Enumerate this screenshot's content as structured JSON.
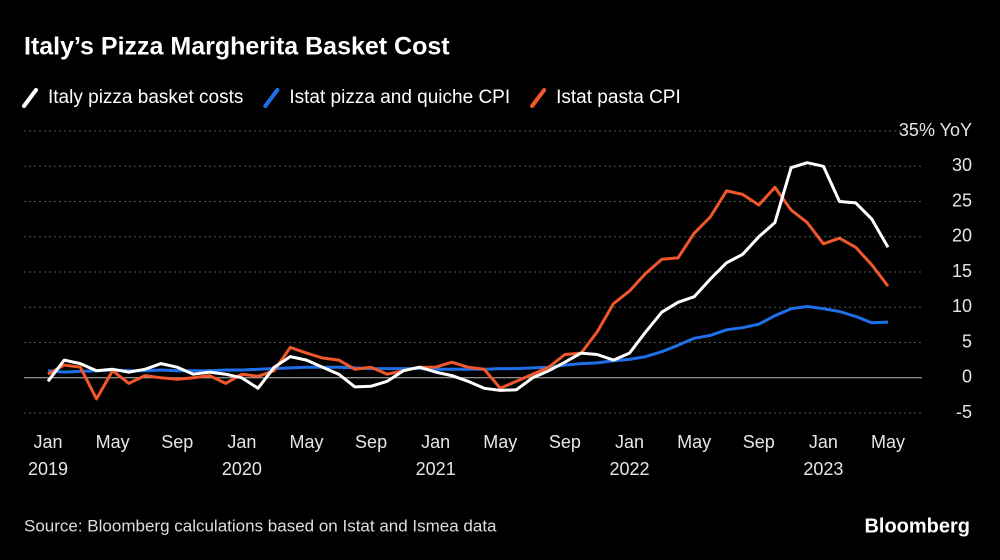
{
  "chart_data": {
    "type": "line",
    "title": "Italy’s Pizza Margherita Basket Cost",
    "source": "Source: Bloomberg calculations based on Istat and Ismea data",
    "brand": "Bloomberg",
    "categories": [
      "Jan",
      null,
      null,
      null,
      "May",
      null,
      null,
      null,
      "Sep",
      null,
      null,
      null,
      "Jan",
      null,
      null,
      null,
      "May",
      null,
      null,
      null,
      "Sep",
      null,
      null,
      null,
      "Jan",
      null,
      null,
      null,
      "May",
      null,
      null,
      null,
      "Sep",
      null,
      null,
      null,
      "Jan",
      null,
      null,
      null,
      "May",
      null,
      null,
      null,
      "Sep",
      null,
      null,
      null,
      "Jan",
      null,
      null,
      null,
      "May"
    ],
    "years": [
      "2019",
      "2020",
      "2021",
      "2022",
      "2023"
    ],
    "series": [
      {
        "name": "Italy pizza basket costs",
        "color": "#ffffff",
        "values": [
          -0.5,
          2.5,
          2,
          1,
          1.2,
          0.8,
          1.2,
          2,
          1.5,
          0.5,
          0.8,
          0.5,
          0,
          -1.5,
          1.5,
          3,
          2.5,
          1.5,
          0.5,
          -1.3,
          -1.2,
          -0.5,
          1,
          1.5,
          0.8,
          0.3,
          -0.5,
          -1.5,
          -1.8,
          -1.7,
          0,
          1,
          2.2,
          3.5,
          3.3,
          2.5,
          3.5,
          6.5,
          9.3,
          10.7,
          11.5,
          14,
          16.3,
          17.5,
          20,
          22,
          29.8,
          30.5,
          30,
          25,
          24.8,
          22.5,
          18.5
        ]
      },
      {
        "name": "Istat pizza and quiche CPI",
        "color": "#1f6fe8",
        "values": [
          1,
          0.8,
          0.9,
          1,
          1.1,
          1,
          1,
          1.1,
          1,
          1,
          1,
          1.1,
          1.1,
          1.2,
          1.3,
          1.4,
          1.5,
          1.5,
          1.5,
          1.4,
          1.3,
          1.3,
          1.3,
          1.3,
          1.2,
          1.2,
          1.2,
          1.2,
          1.3,
          1.3,
          1.4,
          1.5,
          1.8,
          2,
          2.1,
          2.4,
          2.6,
          3,
          3.7,
          4.6,
          5.6,
          6,
          6.8,
          7.1,
          7.6,
          8.8,
          9.8,
          10.1,
          9.8,
          9.4,
          8.7,
          7.8,
          7.9
        ]
      },
      {
        "name": "Istat pasta CPI",
        "color": "#f0572b",
        "values": [
          0.5,
          1.8,
          1.5,
          -3,
          1,
          -0.8,
          0.3,
          0,
          -0.2,
          0,
          0.3,
          -0.8,
          0.5,
          0.2,
          1,
          4.3,
          3.5,
          2.8,
          2.5,
          1.2,
          1.5,
          0.5,
          1,
          1.5,
          1.5,
          2.2,
          1.5,
          1.2,
          -1.5,
          -0.5,
          0.5,
          1.5,
          3.3,
          3.5,
          6.5,
          10.5,
          12.3,
          14.8,
          16.8,
          17,
          20.5,
          22.8,
          26.5,
          26,
          24.5,
          27,
          23.8,
          22,
          19,
          19.8,
          18.5,
          16,
          13
        ]
      }
    ],
    "ylim": [
      -5,
      35
    ],
    "yticks": [
      -5,
      0,
      5,
      10,
      15,
      20,
      25,
      30,
      {
        "value": 35,
        "label": "35% YoY"
      }
    ],
    "grid": true
  }
}
